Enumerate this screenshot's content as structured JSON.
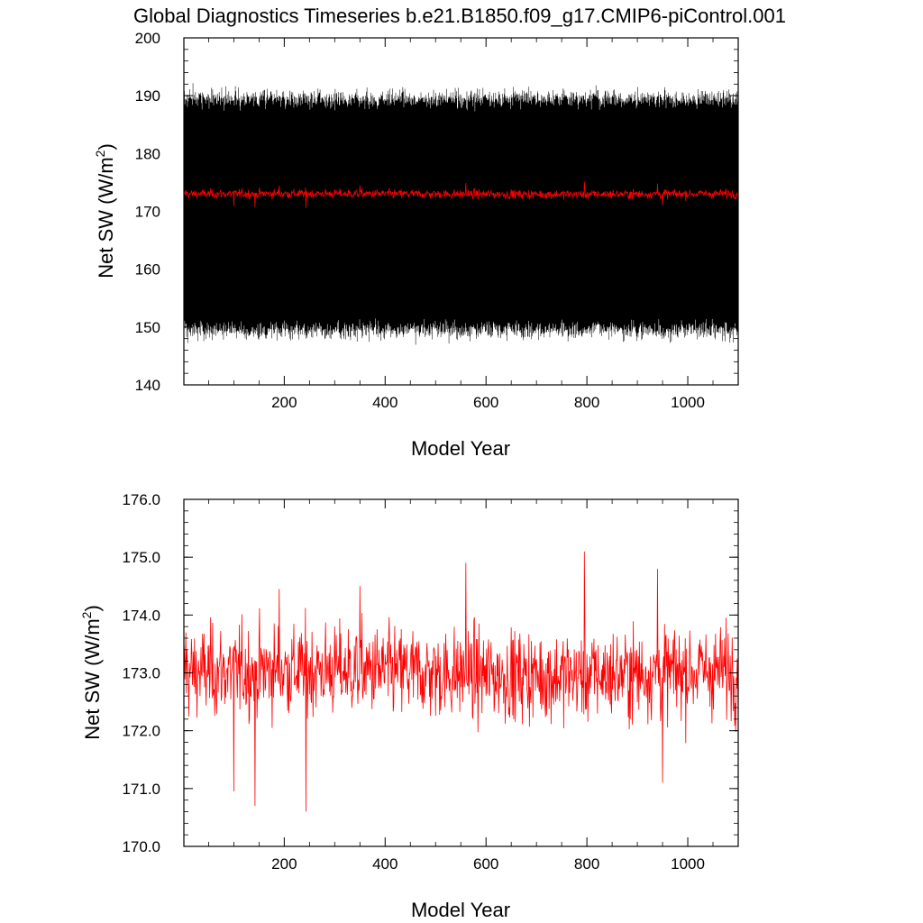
{
  "figure": {
    "title": "Global Diagnostics Timeseries b.e21.B1850.f09_g17.CMIP6-piControl.001"
  },
  "chart_data": [
    {
      "type": "line",
      "xlabel": "Model Year",
      "ylabel": "Net SW (W/m",
      "ylabel_sup": "2",
      "ylabel_close": ")",
      "xlim": [
        1,
        1100
      ],
      "ylim": [
        140,
        200
      ],
      "x_ticks": [
        200,
        400,
        600,
        800,
        1000
      ],
      "x_tick_labels": [
        "200",
        "400",
        "600",
        "800",
        "1000"
      ],
      "y_ticks": [
        140,
        150,
        160,
        170,
        180,
        190,
        200
      ],
      "y_tick_labels": [
        "140",
        "150",
        "160",
        "170",
        "180",
        "190",
        "200"
      ],
      "series": [
        {
          "color": "#000000",
          "kind": "monthly",
          "mean": 169.5,
          "envelope_min": 146,
          "envelope_max": 193,
          "typical_low": 150,
          "typical_high": 190
        },
        {
          "color": "#ff0000",
          "kind": "annual",
          "mean": 173.0,
          "min": 170.6,
          "max": 175.1
        }
      ]
    },
    {
      "type": "line",
      "xlabel": "Model Year",
      "ylabel": "Net SW (W/m",
      "ylabel_sup": "2",
      "ylabel_close": ")",
      "xlim": [
        1,
        1100
      ],
      "ylim": [
        170.0,
        176.0
      ],
      "x_ticks": [
        200,
        400,
        600,
        800,
        1000
      ],
      "x_tick_labels": [
        "200",
        "400",
        "600",
        "800",
        "1000"
      ],
      "y_ticks": [
        170,
        171,
        172,
        173,
        174,
        175,
        176
      ],
      "y_tick_labels": [
        "170.0",
        "171.0",
        "172.0",
        "173.0",
        "174.0",
        "175.0",
        "176.0"
      ],
      "series": [
        {
          "color": "#ff0000",
          "kind": "annual",
          "mean": 173.0,
          "min": 170.6,
          "max": 175.1,
          "peaks": [
            [
              5,
              173.7
            ],
            [
              100,
              170.95
            ],
            [
              142,
              170.7
            ],
            [
              190,
              174.45
            ],
            [
              243,
              170.6
            ],
            [
              350,
              174.5
            ],
            [
              560,
              174.9
            ],
            [
              795,
              175.1
            ],
            [
              940,
              174.8
            ],
            [
              950,
              171.1
            ]
          ]
        }
      ]
    }
  ]
}
